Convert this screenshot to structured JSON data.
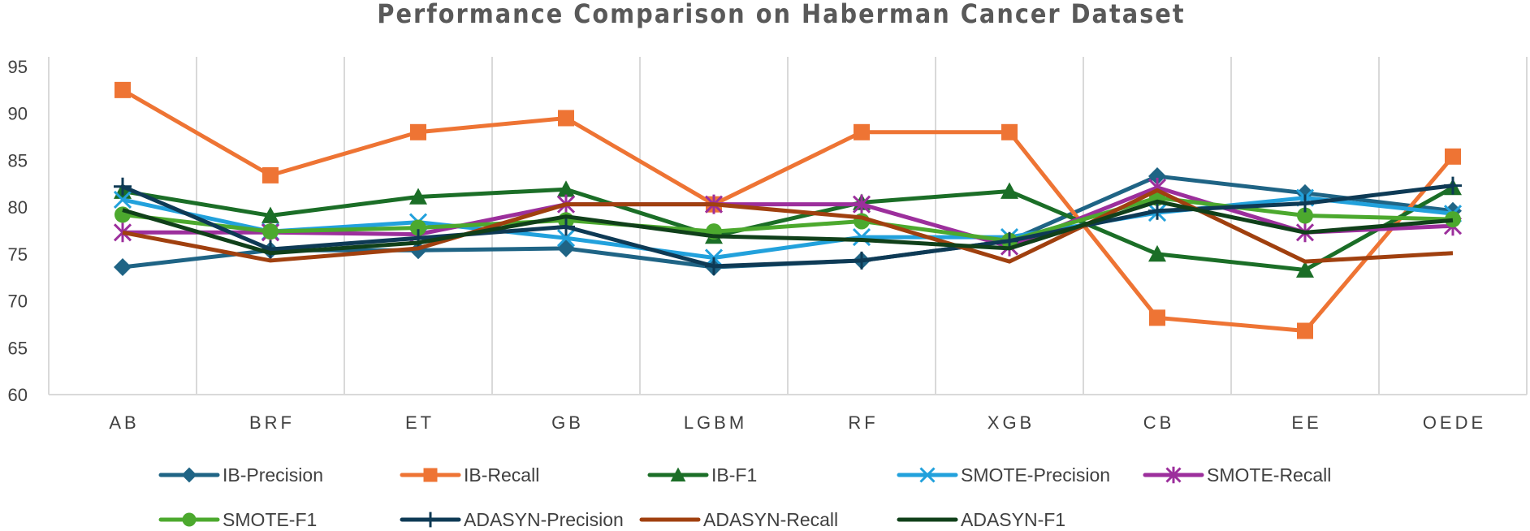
{
  "chart_data": {
    "type": "line",
    "title": "Performance Comparison on Haberman Cancer Dataset",
    "xlabel": "",
    "ylabel": "",
    "ylim": [
      60,
      95
    ],
    "yticks": [
      60,
      65,
      70,
      75,
      80,
      85,
      90,
      95
    ],
    "grid": "vertical",
    "legend_position": "bottom",
    "categories": [
      "AB",
      "BRF",
      "ET",
      "GB",
      "LGBM",
      "RF",
      "XGB",
      "CB",
      "EE",
      "OEDE"
    ],
    "series": [
      {
        "name": "IB-Precision",
        "color": "#1f6485",
        "marker": "diamond",
        "values": [
          73.6,
          75.4,
          75.4,
          75.6,
          73.6,
          74.3,
          76.4,
          83.3,
          81.5,
          79.6
        ]
      },
      {
        "name": "IB-Recall",
        "color": "#ee7434",
        "marker": "square",
        "values": [
          92.5,
          83.4,
          88.0,
          89.5,
          80.3,
          88.0,
          88.0,
          68.2,
          66.8,
          85.4
        ]
      },
      {
        "name": "IB-F1",
        "color": "#1b6e27",
        "marker": "triangle",
        "values": [
          81.7,
          79.1,
          81.1,
          81.9,
          76.9,
          80.5,
          81.7,
          75.0,
          73.3,
          82.1
        ]
      },
      {
        "name": "SMOTE-Precision",
        "color": "#22a1dc",
        "marker": "x",
        "values": [
          80.8,
          77.4,
          78.4,
          76.7,
          74.6,
          76.8,
          76.8,
          79.4,
          81.0,
          79.3
        ]
      },
      {
        "name": "SMOTE-Recall",
        "color": "#9c2f9c",
        "marker": "asterisk",
        "values": [
          77.3,
          77.3,
          77.1,
          80.3,
          80.3,
          80.3,
          75.8,
          82.1,
          77.3,
          78.0
        ]
      },
      {
        "name": "SMOTE-F1",
        "color": "#4ca92e",
        "marker": "circle",
        "values": [
          79.2,
          77.4,
          77.8,
          78.6,
          77.4,
          78.5,
          76.4,
          81.0,
          79.1,
          78.7
        ]
      },
      {
        "name": "ADASYN-Precision",
        "color": "#0e3a55",
        "marker": "plus",
        "values": [
          82.2,
          75.5,
          76.7,
          77.9,
          73.7,
          74.3,
          76.4,
          79.6,
          80.4,
          82.3
        ]
      },
      {
        "name": "ADASYN-Recall",
        "color": "#a0400f",
        "marker": "none",
        "values": [
          77.3,
          74.3,
          75.6,
          80.3,
          80.3,
          78.9,
          74.2,
          81.8,
          74.2,
          75.1
        ]
      },
      {
        "name": "ADASYN-F1",
        "color": "#10401a",
        "marker": "none",
        "values": [
          79.7,
          75.1,
          76.2,
          79.0,
          76.9,
          76.5,
          75.6,
          80.6,
          77.3,
          78.6
        ]
      }
    ]
  }
}
